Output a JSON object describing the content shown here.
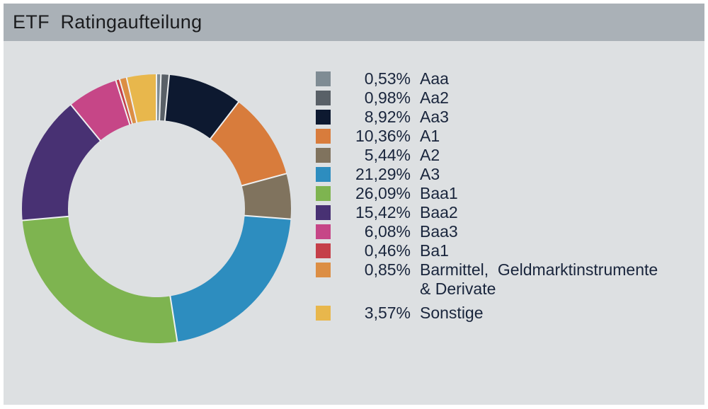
{
  "header": {
    "title": "ETF  Ratingaufteilung"
  },
  "colors": {
    "header_bar": "#aab1b7",
    "panel_background": "#dde0e2",
    "legend_text": "#19253c",
    "slice_separator": "#eef0f1"
  },
  "chart_data": {
    "type": "pie",
    "variant": "donut",
    "title": "ETF Ratingaufteilung",
    "start_angle_deg": 0,
    "direction": "clockwise",
    "inner_radius_ratio": 0.66,
    "legend_position": "right",
    "series": [
      {
        "label": "Aaa",
        "value": 0.53,
        "display": "0,53%",
        "color": "#7f8c94"
      },
      {
        "label": "Aa2",
        "value": 0.98,
        "display": "0,98%",
        "color": "#596067"
      },
      {
        "label": "Aa3",
        "value": 8.92,
        "display": "8,92%",
        "color": "#0d1930"
      },
      {
        "label": "A1",
        "value": 10.36,
        "display": "10,36%",
        "color": "#d87c3c"
      },
      {
        "label": "A2",
        "value": 5.44,
        "display": "5,44%",
        "color": "#80735e"
      },
      {
        "label": "A3",
        "value": 21.29,
        "display": "21,29%",
        "color": "#2d8dbf"
      },
      {
        "label": "Baa1",
        "value": 26.09,
        "display": "26,09%",
        "color": "#7eb450"
      },
      {
        "label": "Baa2",
        "value": 15.42,
        "display": "15,42%",
        "color": "#483173"
      },
      {
        "label": "Baa3",
        "value": 6.08,
        "display": "6,08%",
        "color": "#c64687"
      },
      {
        "label": "Ba1",
        "value": 0.46,
        "display": "0,46%",
        "color": "#c53f49"
      },
      {
        "label": "Barmittel,  Geldmarktinstrumente\n& Derivate",
        "value": 0.85,
        "display": "0,85%",
        "color": "#dc8e44"
      },
      {
        "label": "Sonstige",
        "value": 3.57,
        "display": "3,57%",
        "color": "#e8b74c"
      }
    ]
  }
}
